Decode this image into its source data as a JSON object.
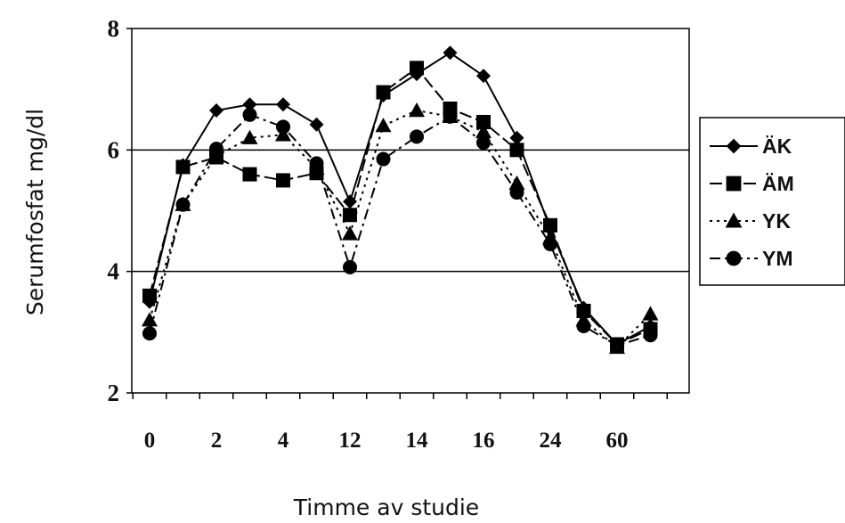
{
  "chart_data": {
    "type": "line",
    "title": "",
    "xlabel": "Timme av studie",
    "ylabel": "Serumfosfat mg/dl",
    "ylim": [
      2,
      8
    ],
    "yticks": [
      "2",
      "4",
      "6",
      "8"
    ],
    "gridlines_y": [
      4,
      6
    ],
    "x_tick_labels": [
      "0",
      "2",
      "4",
      "12",
      "14",
      "16",
      "24",
      "60"
    ],
    "x_points": 16,
    "legend_position": "right",
    "series": [
      {
        "name": "ÄK",
        "marker": "diamond",
        "line_style": "solid",
        "values": [
          3.5,
          5.75,
          6.65,
          6.75,
          6.75,
          6.42,
          5.15,
          6.9,
          7.25,
          7.6,
          7.22,
          6.2,
          4.7,
          3.4,
          2.8,
          3.1
        ]
      },
      {
        "name": "ÄM",
        "marker": "square",
        "line_style": "long-dash",
        "values": [
          3.6,
          5.72,
          5.88,
          5.6,
          5.5,
          5.62,
          4.93,
          6.95,
          7.35,
          6.68,
          6.46,
          6.0,
          4.76,
          3.35,
          2.8,
          3.05
        ]
      },
      {
        "name": "YK",
        "marker": "triangle",
        "line_style": "dotted",
        "values": [
          3.2,
          5.1,
          5.9,
          6.2,
          6.25,
          5.7,
          4.62,
          6.4,
          6.65,
          6.55,
          6.3,
          5.45,
          4.55,
          3.2,
          2.75,
          3.3
        ]
      },
      {
        "name": "YM",
        "marker": "circle",
        "line_style": "dash-dot",
        "values": [
          2.98,
          5.1,
          6.02,
          6.58,
          6.38,
          5.78,
          4.07,
          5.85,
          6.22,
          6.55,
          6.12,
          5.3,
          4.45,
          3.1,
          2.78,
          2.95
        ]
      }
    ]
  }
}
